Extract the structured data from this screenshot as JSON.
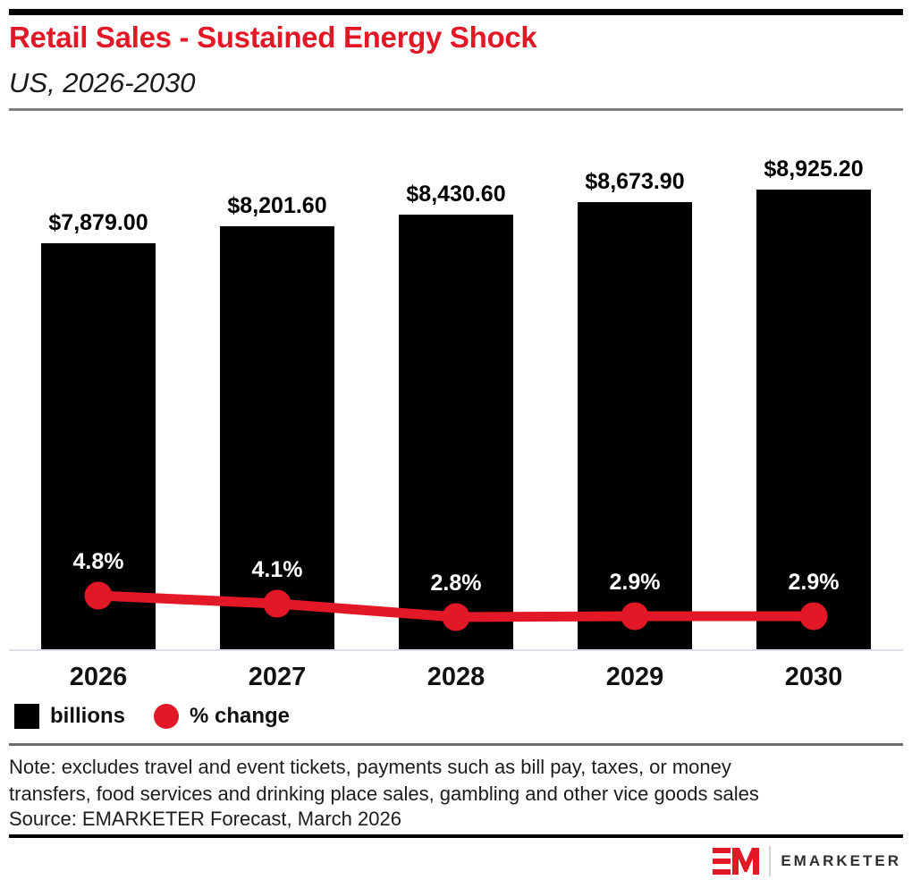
{
  "header": {
    "title": "Retail Sales - Sustained Energy Shock",
    "subtitle": "US, 2026-2030"
  },
  "chart_data": {
    "type": "bar",
    "subtype": "bar-line-combo",
    "title": "Retail Sales - Sustained Energy Shock",
    "subtitle": "US, 2026-2030",
    "categories": [
      "2026",
      "2027",
      "2028",
      "2029",
      "2030"
    ],
    "series": [
      {
        "name": "billions",
        "type": "bar",
        "unit": "US$ billions",
        "values": [
          7879.0,
          8201.6,
          8430.6,
          8673.9,
          8925.2
        ],
        "labels": [
          "$7,879.00",
          "$8,201.60",
          "$8,430.60",
          "$8,673.90",
          "$8,925.20"
        ],
        "color": "#000000"
      },
      {
        "name": "% change",
        "type": "line",
        "unit": "percent",
        "values": [
          4.8,
          4.1,
          2.8,
          2.9,
          2.9
        ],
        "labels": [
          "4.8%",
          "4.1%",
          "2.8%",
          "2.9%",
          "2.9%"
        ],
        "color": "#e21827"
      }
    ],
    "xlabel": "",
    "ylabel": "",
    "ylim": [
      0,
      9500
    ],
    "grid": false,
    "legend_position": "bottom-left"
  },
  "legend": {
    "items": [
      {
        "label": "billions",
        "swatch": "square",
        "color": "#000000"
      },
      {
        "label": "% change",
        "swatch": "circle",
        "color": "#e21827"
      }
    ]
  },
  "footer": {
    "note": "Note: excludes travel and event tickets, payments such as bill pay, taxes, or money transfers, food services and drinking place sales, gambling and other vice goods sales",
    "source": "Source: EMARKETER Forecast, March 2026",
    "brand": "EMARKETER"
  },
  "colors": {
    "brand_red": "#e21827",
    "bar_black": "#000000",
    "header_rule": "#7d7d7d",
    "legend_rule": "#6b6b6b",
    "baseline": "#d9dfe8"
  }
}
